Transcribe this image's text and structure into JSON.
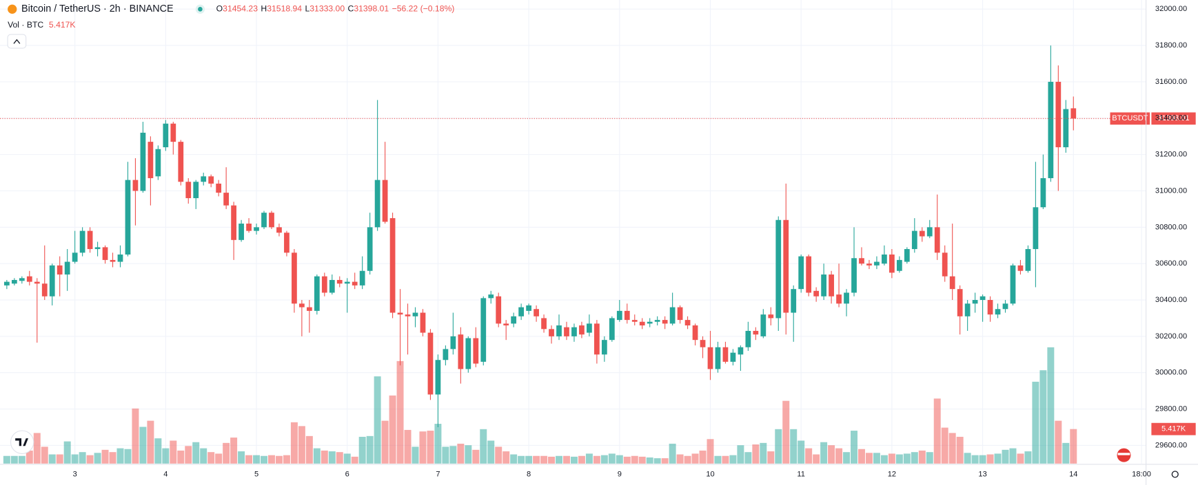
{
  "chart_data": {
    "type": "candlestick",
    "title": "Bitcoin / TetherUS · 2h · BINANCE",
    "legend_prefixes": [
      "O",
      "H",
      "L",
      "C"
    ],
    "legend_values": [
      "31454.23",
      "31518.94",
      "31333.00",
      "31398.01"
    ],
    "legend_change": "−56.22 (−0.18%)",
    "symbol": "BTCUSDT",
    "last_price_label": "31398.01",
    "up_color": "#26a69a",
    "down_color": "#ef5350",
    "grid": true,
    "open": [
      30480,
      30490,
      30505,
      30530,
      30500,
      30490,
      30420,
      30590,
      30540,
      30610,
      30660,
      30780,
      30680,
      30690,
      30620,
      30610,
      30650,
      31060,
      31000,
      31270,
      31080,
      31240,
      31370,
      31270,
      31050,
      30960,
      31050,
      31080,
      31040,
      30990,
      30920,
      30730,
      30820,
      30780,
      30800,
      30880,
      30800,
      30770,
      30660,
      30380,
      30360,
      30340,
      30530,
      30440,
      30510,
      30490,
      30500,
      30480,
      30560,
      30800,
      31060,
      30850,
      30330,
      30320,
      30310,
      30330,
      30220,
      29880,
      30070,
      30130,
      30210,
      30020,
      30190,
      30060,
      30410,
      30420,
      30270,
      30270,
      30310,
      30340,
      30350,
      30300,
      30240,
      30200,
      30250,
      30200,
      30260,
      30220,
      30270,
      30100,
      30180,
      30290,
      30340,
      30290,
      30280,
      30270,
      30280,
      30290,
      30270,
      30360,
      30290,
      30260,
      30180,
      30140,
      30020,
      30140,
      30060,
      30100,
      30140,
      30230,
      30200,
      30320,
      30300,
      30840,
      30330,
      30460,
      30640,
      30450,
      30420,
      30540,
      30430,
      30380,
      30440,
      30630,
      30600,
      30590,
      30600,
      30650,
      30560,
      30610,
      30680,
      30780,
      30750,
      30800,
      30660,
      30530,
      30460,
      30310,
      30380,
      30400,
      30400,
      30320,
      30350,
      30380,
      30590,
      30560,
      30680,
      30910,
      31070,
      31600,
      31240,
      31454.23
    ],
    "high": [
      30510,
      30520,
      30530,
      30560,
      30520,
      30700,
      30600,
      30640,
      30680,
      30780,
      30800,
      30800,
      30720,
      30700,
      30660,
      30700,
      31160,
      31180,
      31380,
      31300,
      31250,
      31390,
      31380,
      31280,
      31070,
      31060,
      31100,
      31090,
      31060,
      31130,
      30940,
      30840,
      30850,
      30820,
      30890,
      30890,
      30820,
      30780,
      30680,
      30400,
      30400,
      30540,
      30550,
      30540,
      30530,
      30520,
      30550,
      30640,
      30880,
      31500,
      31270,
      30880,
      30460,
      30380,
      30360,
      30350,
      30240,
      30100,
      30150,
      30330,
      30250,
      30200,
      30250,
      30420,
      30450,
      30440,
      30290,
      30330,
      30380,
      30380,
      30370,
      30320,
      30260,
      30320,
      30280,
      30270,
      30280,
      30320,
      30290,
      30200,
      30310,
      30400,
      30380,
      30320,
      30300,
      30300,
      30310,
      30310,
      30440,
      30370,
      30310,
      30270,
      30200,
      30230,
      30170,
      30170,
      30130,
      30150,
      30280,
      30250,
      30350,
      30360,
      30860,
      31040,
      30480,
      30650,
      30650,
      30470,
      30600,
      30560,
      30600,
      30460,
      30800,
      30690,
      30620,
      30640,
      30700,
      30680,
      30640,
      30690,
      30850,
      30800,
      30840,
      30980,
      30700,
      30820,
      30480,
      30400,
      30440,
      30430,
      30420,
      30380,
      30400,
      30600,
      30620,
      30700,
      31160,
      31200,
      31800,
      31690,
      31500,
      31518.94
    ],
    "low": [
      30460,
      30480,
      30490,
      30480,
      30165,
      30400,
      30370,
      30420,
      30450,
      30600,
      30640,
      30660,
      30640,
      30600,
      30580,
      30580,
      30640,
      30810,
      30990,
      30920,
      31060,
      31220,
      31200,
      31030,
      30930,
      30900,
      31030,
      31020,
      30970,
      30900,
      30620,
      30720,
      30770,
      30760,
      30790,
      30790,
      30750,
      30640,
      30330,
      30200,
      30220,
      30320,
      30420,
      30430,
      30470,
      30330,
      30460,
      30460,
      30540,
      30780,
      30820,
      30300,
      30040,
      30100,
      30250,
      30200,
      29850,
      29700,
      30040,
      30100,
      29940,
      30000,
      30030,
      30040,
      30380,
      30250,
      30180,
      30250,
      30290,
      30320,
      30280,
      30220,
      30160,
      30180,
      30180,
      30170,
      30190,
      30200,
      30050,
      30060,
      30170,
      30280,
      30270,
      30260,
      30240,
      30250,
      30260,
      30240,
      30260,
      30270,
      30240,
      30150,
      30080,
      29960,
      30000,
      30050,
      30040,
      30010,
      30120,
      30180,
      30190,
      30260,
      30230,
      30210,
      30170,
      30440,
      30420,
      30390,
      30400,
      30380,
      30360,
      30310,
      30420,
      30590,
      30570,
      30570,
      30590,
      30520,
      30550,
      30600,
      30660,
      30720,
      30740,
      30620,
      30500,
      30400,
      30210,
      30230,
      30330,
      30280,
      30280,
      30300,
      30330,
      30370,
      30540,
      30550,
      30470,
      30900,
      31050,
      31000,
      31210,
      31333.0
    ],
    "close": [
      30500,
      30510,
      30520,
      30500,
      30490,
      30420,
      30590,
      30540,
      30610,
      30660,
      30780,
      30680,
      30690,
      30620,
      30610,
      30650,
      31060,
      31000,
      31320,
      31070,
      31230,
      31370,
      31270,
      31050,
      30960,
      31050,
      31080,
      31040,
      30990,
      30920,
      30730,
      30820,
      30780,
      30800,
      30880,
      30800,
      30770,
      30660,
      30380,
      30360,
      30340,
      30530,
      30440,
      30510,
      30490,
      30500,
      30480,
      30560,
      30800,
      31060,
      30830,
      30330,
      30320,
      30310,
      30330,
      30220,
      29880,
      30070,
      30130,
      30200,
      30020,
      30190,
      30050,
      30410,
      30430,
      30270,
      30260,
      30310,
      30360,
      30370,
      30310,
      30240,
      30200,
      30260,
      30200,
      30250,
      30210,
      30270,
      30100,
      30180,
      30300,
      30340,
      30290,
      30280,
      30260,
      30280,
      30290,
      30270,
      30360,
      30290,
      30260,
      30180,
      30140,
      30020,
      30140,
      30060,
      30110,
      30140,
      30230,
      30210,
      30320,
      30300,
      30840,
      30330,
      30460,
      30640,
      30440,
      30420,
      30540,
      30420,
      30380,
      30440,
      30630,
      30600,
      30590,
      30610,
      30650,
      30550,
      30620,
      30680,
      30780,
      30750,
      30800,
      30660,
      30530,
      30460,
      30310,
      30380,
      30400,
      30420,
      30320,
      30350,
      30380,
      30590,
      30560,
      30680,
      30910,
      31070,
      31600,
      31240,
      31450,
      31398.01
    ],
    "volume": {
      "name": "Vol · BTC",
      "last_label": "5.417K",
      "values": [
        1.2,
        1.2,
        1.2,
        2.04,
        4.8,
        2.64,
        1.44,
        1.44,
        3.48,
        1.44,
        1.8,
        1.32,
        1.68,
        2.16,
        1.8,
        2.4,
        2.28,
        8.64,
        5.76,
        6.72,
        3.96,
        2.4,
        3.6,
        2.04,
        2.76,
        3.36,
        2.4,
        1.8,
        1.56,
        3.24,
        4.08,
        1.92,
        1.32,
        1.32,
        1.2,
        1.32,
        1.2,
        1.32,
        6.48,
        5.88,
        4.32,
        2.4,
        2.04,
        1.92,
        1.8,
        1.56,
        1.08,
        4.2,
        4.32,
        13.68,
        6.72,
        10.68,
        16.08,
        5.28,
        2.64,
        5.04,
        5.16,
        6.24,
        2.64,
        2.76,
        3.12,
        2.88,
        2.16,
        5.4,
        3.6,
        2.64,
        1.92,
        1.44,
        1.2,
        1.2,
        1.2,
        1.2,
        1.08,
        1.2,
        1.2,
        1.08,
        1.2,
        1.56,
        1.2,
        1.32,
        1.56,
        1.32,
        1.08,
        1.2,
        1.08,
        0.96,
        0.84,
        0.84,
        3.12,
        1.44,
        1.2,
        1.56,
        2.04,
        3.84,
        1.2,
        1.2,
        1.32,
        2.88,
        1.8,
        3.0,
        3.24,
        1.92,
        5.4,
        9.84,
        5.4,
        3.6,
        2.4,
        1.44,
        3.36,
        2.88,
        2.4,
        1.8,
        5.16,
        2.28,
        1.68,
        1.68,
        1.32,
        1.56,
        1.44,
        1.56,
        1.8,
        2.04,
        1.8,
        10.2,
        5.64,
        4.8,
        4.2,
        1.68,
        1.32,
        1.32,
        1.44,
        1.56,
        2.16,
        2.4,
        1.56,
        1.92,
        12.84,
        14.64,
        18.24,
        6.72,
        3.24,
        5.417
      ]
    },
    "xlim": [
      -0.9,
      150.6
    ],
    "xticks": [
      {
        "value": 9,
        "label": "3"
      },
      {
        "value": 21,
        "label": "4"
      },
      {
        "value": 33,
        "label": "5"
      },
      {
        "value": 45,
        "label": "6"
      },
      {
        "value": 57,
        "label": "7"
      },
      {
        "value": 69,
        "label": "8"
      },
      {
        "value": 81,
        "label": "9"
      },
      {
        "value": 93,
        "label": "10"
      },
      {
        "value": 105,
        "label": "11"
      },
      {
        "value": 117,
        "label": "12"
      },
      {
        "value": 129,
        "label": "13"
      },
      {
        "value": 141,
        "label": "14"
      },
      {
        "value": 150,
        "label": "18:00"
      }
    ],
    "ylim": [
      29500,
      32050
    ],
    "yticks": [
      {
        "value": 29600,
        "label": "29600.00"
      },
      {
        "value": 29800,
        "label": "29800.00"
      },
      {
        "value": 30000,
        "label": "30000.00"
      },
      {
        "value": 30200,
        "label": "30200.00"
      },
      {
        "value": 30400,
        "label": "30400.00"
      },
      {
        "value": 30600,
        "label": "30600.00"
      },
      {
        "value": 30800,
        "label": "30800.00"
      },
      {
        "value": 31000,
        "label": "31000.00"
      },
      {
        "value": 31200,
        "label": "31200.00"
      },
      {
        "value": 31400,
        "label": "31400.00"
      },
      {
        "value": 31600,
        "label": "31600.00"
      },
      {
        "value": 31800,
        "label": "31800.00"
      },
      {
        "value": 32000,
        "label": "32000.00"
      }
    ]
  }
}
